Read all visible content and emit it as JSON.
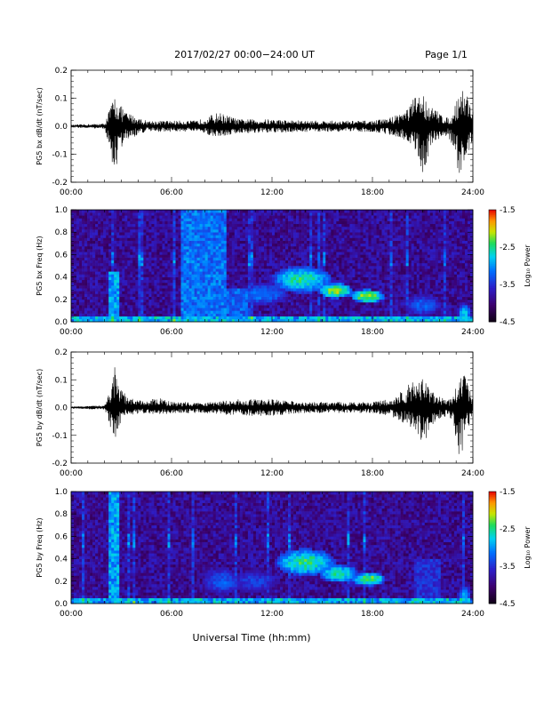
{
  "header": {
    "title": "2017/02/27  00:00−24:00 UT",
    "page": "Page 1/1"
  },
  "footer": {
    "xlabel": "Universal Time (hh:mm)"
  },
  "chart_data": [
    {
      "type": "line",
      "ylabel": "PG5 bx dB/dt (nT/sec)",
      "xlim": [
        0,
        24
      ],
      "ylim": [
        -0.2,
        0.2
      ],
      "xticks": [
        "00:00",
        "06:00",
        "12:00",
        "18:00",
        "24:00"
      ],
      "yticks": [
        "-0.2",
        "-0.1",
        "0.0",
        "0.1",
        "0.2"
      ],
      "envelope": {
        "x": [
          0,
          2.0,
          2.4,
          2.6,
          2.9,
          3.3,
          4.5,
          6.0,
          7.5,
          8.8,
          10.0,
          12.0,
          14.0,
          16.0,
          18.0,
          19.0,
          20.0,
          20.6,
          21.0,
          21.5,
          22.0,
          22.5,
          22.8,
          23.2,
          23.6,
          24.0
        ],
        "ymax": [
          0.005,
          0.01,
          0.08,
          0.11,
          0.08,
          0.05,
          0.02,
          0.02,
          0.02,
          0.05,
          0.025,
          0.025,
          0.02,
          0.02,
          0.02,
          0.03,
          0.06,
          0.11,
          0.12,
          0.07,
          0.05,
          0.03,
          0.04,
          0.14,
          0.13,
          0.06
        ],
        "ymin": [
          -0.005,
          -0.01,
          -0.12,
          -0.18,
          -0.09,
          -0.05,
          -0.02,
          -0.02,
          -0.02,
          -0.04,
          -0.025,
          -0.025,
          -0.02,
          -0.02,
          -0.02,
          -0.03,
          -0.05,
          -0.09,
          -0.17,
          -0.08,
          -0.05,
          -0.03,
          -0.08,
          -0.19,
          -0.12,
          -0.06
        ]
      }
    },
    {
      "type": "heatmap",
      "ylabel": "PG5 bx Freq (Hz)",
      "xlim": [
        0,
        24
      ],
      "ylim": [
        0,
        1.0
      ],
      "xticks": [
        "00:00",
        "06:00",
        "12:00",
        "18:00",
        "24:00"
      ],
      "yticks": [
        "0.0",
        "0.2",
        "0.4",
        "0.6",
        "0.8",
        "1.0"
      ],
      "colorbar": {
        "label": "Log₁₀ Power",
        "range": [
          -4.5,
          -1.5
        ],
        "ticks": [
          "-1.5",
          "-2.5",
          "-3.5",
          "-4.5"
        ]
      },
      "bands": [
        {
          "x": 2.2,
          "w": 0.6,
          "fmax": 0.45,
          "level": 0.55
        },
        {
          "x": 6.6,
          "w": 2.7,
          "fmax": 1.0,
          "level": 0.48
        },
        {
          "x": 9.0,
          "w": 1.5,
          "fmax": 0.3,
          "level": 0.45
        }
      ],
      "features": [
        {
          "t": 13.8,
          "f": 0.38,
          "rt": 1.8,
          "rf": 0.12,
          "level": 0.7
        },
        {
          "t": 15.8,
          "f": 0.28,
          "rt": 1.0,
          "rf": 0.07,
          "level": 0.82
        },
        {
          "t": 17.7,
          "f": 0.23,
          "rt": 1.0,
          "rf": 0.06,
          "level": 0.85
        },
        {
          "t": 11.5,
          "f": 0.25,
          "rt": 1.5,
          "rf": 0.1,
          "level": 0.5
        },
        {
          "t": 21.0,
          "f": 0.15,
          "rt": 1.2,
          "rf": 0.1,
          "level": 0.45
        },
        {
          "t": 23.5,
          "f": 0.08,
          "rt": 0.4,
          "rf": 0.08,
          "level": 0.6
        }
      ]
    },
    {
      "type": "line",
      "ylabel": "PG5 by dB/dt (nT/sec)",
      "xlim": [
        0,
        24
      ],
      "ylim": [
        -0.2,
        0.2
      ],
      "xticks": [
        "00:00",
        "06:00",
        "12:00",
        "18:00",
        "24:00"
      ],
      "yticks": [
        "-0.2",
        "-0.1",
        "0.0",
        "0.1",
        "0.2"
      ],
      "envelope": {
        "x": [
          0,
          2.0,
          2.4,
          2.6,
          2.9,
          3.3,
          4.5,
          5.0,
          6.0,
          8.0,
          10.0,
          12.0,
          14.0,
          16.0,
          18.0,
          19.0,
          20.0,
          20.6,
          21.0,
          21.5,
          22.0,
          22.5,
          22.8,
          23.2,
          23.6,
          24.0
        ],
        "ymax": [
          0.003,
          0.008,
          0.08,
          0.15,
          0.08,
          0.04,
          0.02,
          0.04,
          0.02,
          0.02,
          0.03,
          0.03,
          0.02,
          0.02,
          0.02,
          0.03,
          0.07,
          0.12,
          0.11,
          0.06,
          0.04,
          0.03,
          0.03,
          0.15,
          0.12,
          0.05
        ],
        "ymin": [
          -0.003,
          -0.008,
          -0.08,
          -0.12,
          -0.06,
          -0.03,
          -0.02,
          -0.03,
          -0.02,
          -0.02,
          -0.03,
          -0.03,
          -0.02,
          -0.02,
          -0.02,
          -0.03,
          -0.06,
          -0.1,
          -0.14,
          -0.07,
          -0.04,
          -0.03,
          -0.05,
          -0.2,
          -0.1,
          -0.04
        ]
      }
    },
    {
      "type": "heatmap",
      "ylabel": "PG5 by Freq (Hz)",
      "xlim": [
        0,
        24
      ],
      "ylim": [
        0,
        1.0
      ],
      "xticks": [
        "00:00",
        "06:00",
        "12:00",
        "18:00",
        "24:00"
      ],
      "yticks": [
        "0.0",
        "0.2",
        "0.4",
        "0.6",
        "0.8",
        "1.0"
      ],
      "colorbar": {
        "label": "Log₁₀ Power",
        "range": [
          -4.5,
          -1.5
        ],
        "ticks": [
          "-1.5",
          "-2.5",
          "-3.5",
          "-4.5"
        ]
      },
      "bands": [
        {
          "x": 2.2,
          "w": 0.6,
          "fmax": 1.0,
          "level": 0.55
        },
        {
          "x": 20.5,
          "w": 1.5,
          "fmax": 0.4,
          "level": 0.35
        }
      ],
      "features": [
        {
          "t": 14.0,
          "f": 0.37,
          "rt": 1.8,
          "rf": 0.12,
          "level": 0.72
        },
        {
          "t": 16.0,
          "f": 0.27,
          "rt": 1.2,
          "rf": 0.08,
          "level": 0.7
        },
        {
          "t": 17.8,
          "f": 0.22,
          "rt": 1.0,
          "rf": 0.06,
          "level": 0.78
        },
        {
          "t": 9.0,
          "f": 0.2,
          "rt": 1.2,
          "rf": 0.12,
          "level": 0.45
        },
        {
          "t": 11.0,
          "f": 0.2,
          "rt": 1.5,
          "rf": 0.1,
          "level": 0.4
        },
        {
          "t": 23.5,
          "f": 0.08,
          "rt": 0.4,
          "rf": 0.08,
          "level": 0.55
        }
      ]
    }
  ]
}
